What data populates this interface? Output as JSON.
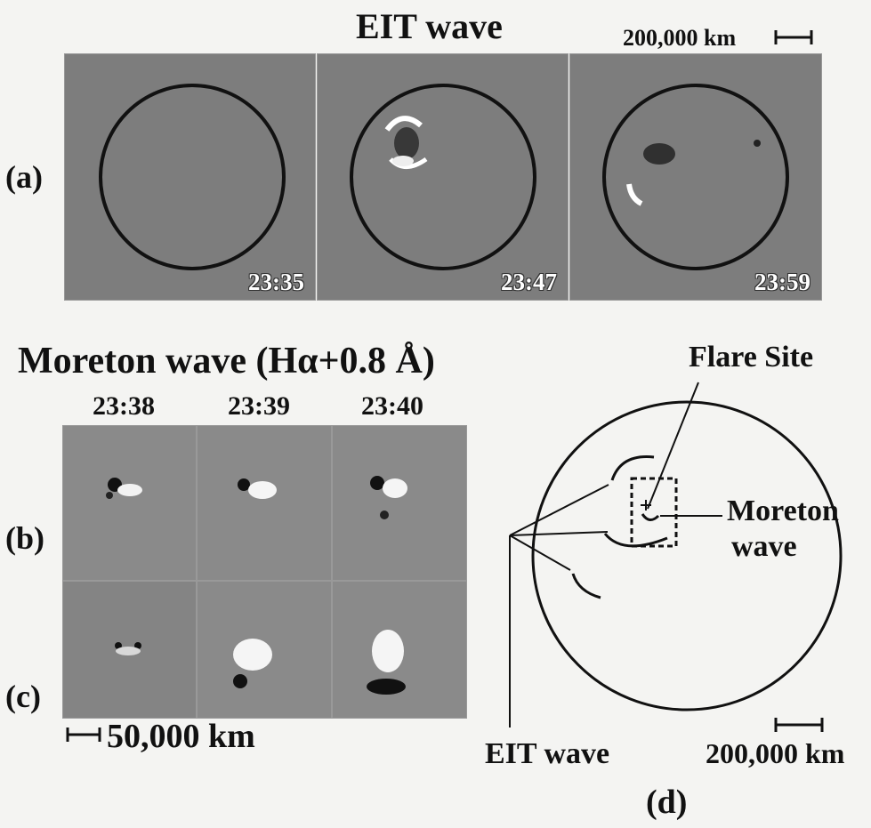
{
  "title_eit": "EIT wave",
  "scale_eit": "200,000 km",
  "label_a": "(a)",
  "label_b": "(b)",
  "label_c": "(c)",
  "label_d": "(d)",
  "eit_times": [
    "23:35",
    "23:47",
    "23:59"
  ],
  "title_moreton": "Moreton wave (Hα+0.8 Å)",
  "moreton_times": [
    "23:38",
    "23:39",
    "23:40"
  ],
  "scale_moreton": "50,000 km",
  "diagram": {
    "flare_site": "Flare Site",
    "moreton_line1": "Moreton",
    "moreton_line2": "wave",
    "eit_wave": "EIT wave",
    "scale": "200,000 km"
  },
  "colors": {
    "eit_panel": "#7d7d7d",
    "ha_panel": "#8a8a8a",
    "ink": "#111111"
  }
}
